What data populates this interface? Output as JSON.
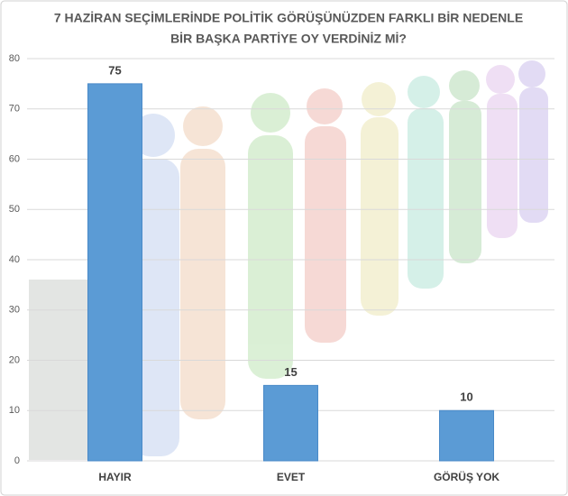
{
  "chart_data": {
    "type": "bar",
    "title": [
      "7 HAZİRAN SEÇİMLERİNDE POLİTİK GÖRÜŞÜNÜZDEN FARKLI BİR NEDENLE",
      "BİR BAŞKA PARTİYE OY VERDİNİZ Mİ?"
    ],
    "categories": [
      "HAYIR",
      "EVET",
      "GÖRÜŞ YOK"
    ],
    "values": [
      75,
      15,
      10
    ],
    "color": "#5b9bd5",
    "ylim": [
      0,
      80
    ],
    "yticks": [
      0,
      10,
      20,
      30,
      40,
      50,
      60,
      70,
      80
    ],
    "grid": true
  }
}
